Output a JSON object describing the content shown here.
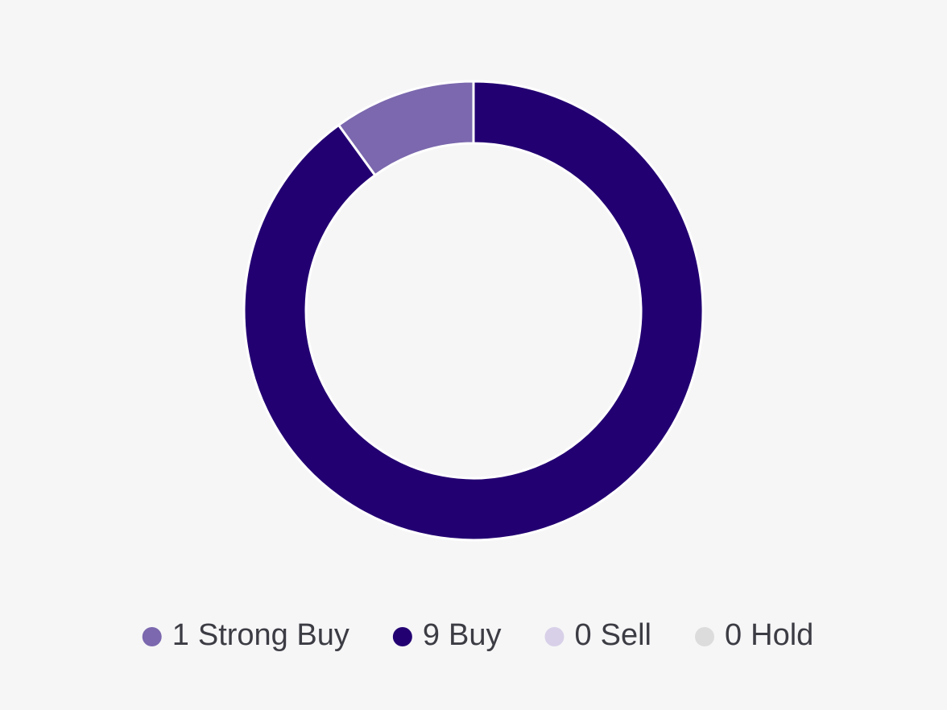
{
  "chart_data": {
    "type": "donut",
    "categories": [
      "Strong Buy",
      "Buy",
      "Sell",
      "Hold"
    ],
    "values": [
      1,
      9,
      0,
      0
    ],
    "colors": [
      "#7b68ae",
      "#230072",
      "#d8d0e8",
      "#dcdcdc"
    ],
    "legend": "bottom"
  }
}
